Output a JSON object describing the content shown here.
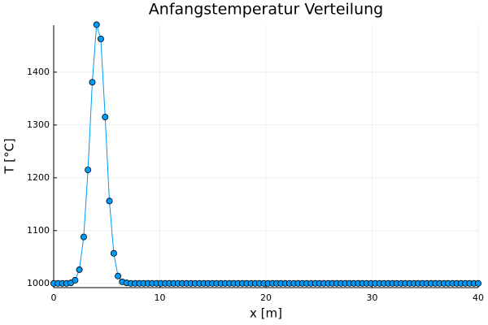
{
  "chart_data": {
    "type": "line",
    "title": "Anfangstemperatur Verteilung",
    "x_label": "x [m]",
    "y_label": "T [°C]",
    "x": [
      0,
      0.4,
      0.81,
      1.21,
      1.62,
      2.02,
      2.42,
      2.83,
      3.23,
      3.64,
      4.04,
      4.44,
      4.85,
      5.25,
      5.66,
      6.06,
      6.46,
      6.87,
      7.27,
      7.68,
      8.08,
      8.48,
      8.89,
      9.29,
      9.7,
      10.1,
      10.51,
      10.91,
      11.31,
      11.72,
      12.12,
      12.53,
      12.93,
      13.33,
      13.74,
      14.14,
      14.55,
      14.95,
      15.35,
      15.76,
      16.16,
      16.57,
      16.97,
      17.37,
      17.78,
      18.18,
      18.59,
      18.99,
      19.39,
      19.8,
      20.2,
      20.61,
      21.01,
      21.41,
      21.82,
      22.22,
      22.63,
      23.03,
      23.43,
      23.84,
      24.24,
      24.65,
      25.05,
      25.45,
      25.86,
      26.26,
      26.67,
      27.07,
      27.47,
      27.88,
      28.28,
      28.69,
      29.09,
      29.49,
      29.9,
      30.3,
      30.71,
      31.11,
      31.52,
      31.92,
      32.32,
      32.73,
      33.13,
      33.54,
      33.94,
      34.34,
      34.75,
      35.15,
      35.56,
      35.96,
      36.36,
      36.77,
      37.17,
      37.58,
      37.98,
      38.38,
      38.79,
      39.19,
      39.6,
      40
    ],
    "series": [
      {
        "color": "#009af9",
        "values": [
          1000,
          1000,
          1000,
          1000,
          1001,
          1006,
          1026,
          1088,
          1215,
          1381,
          1490,
          1463,
          1315,
          1156,
          1057,
          1014,
          1003,
          1001,
          1000,
          1000,
          1000,
          1000,
          1000,
          1000,
          1000,
          1000,
          1000,
          1000,
          1000,
          1000,
          1000,
          1000,
          1000,
          1000,
          1000,
          1000,
          1000,
          1000,
          1000,
          1000,
          1000,
          1000,
          1000,
          1000,
          1000,
          1000,
          1000,
          1000,
          1000,
          1000,
          1000,
          1000,
          1000,
          1000,
          1000,
          1000,
          1000,
          1000,
          1000,
          1000,
          1000,
          1000,
          1000,
          1000,
          1000,
          1000,
          1000,
          1000,
          1000,
          1000,
          1000,
          1000,
          1000,
          1000,
          1000,
          1000,
          1000,
          1000,
          1000,
          1000,
          1000,
          1000,
          1000,
          1000,
          1000,
          1000,
          1000,
          1000,
          1000,
          1000,
          1000,
          1000,
          1000,
          1000,
          1000,
          1000,
          1000,
          1000,
          1000,
          1000
        ]
      }
    ],
    "xlim": [
      0,
      40
    ],
    "xticks": [
      0,
      10,
      20,
      30,
      40
    ],
    "ylim": [
      992,
      1489
    ],
    "yticks": [
      1000,
      1100,
      1200,
      1300,
      1400
    ],
    "grid": true,
    "markers": true
  }
}
